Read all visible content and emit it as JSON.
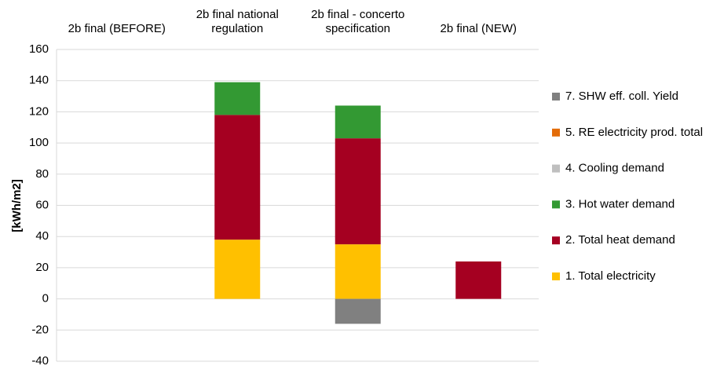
{
  "chart_data": {
    "type": "stacked_bar",
    "categories": [
      "2b final (BEFORE)",
      "2b final national regulation",
      "2b final - concerto specification",
      "2b final (NEW)"
    ],
    "series": [
      {
        "name": "1. Total electricity",
        "color": "#FFC000",
        "values": [
          0,
          38,
          35,
          0
        ]
      },
      {
        "name": "2. Total heat demand",
        "color": "#A50021",
        "values": [
          0,
          80,
          68,
          24
        ]
      },
      {
        "name": "3. Hot water demand",
        "color": "#339933",
        "values": [
          0,
          21,
          21,
          0
        ]
      },
      {
        "name": "4. Cooling demand",
        "color": "#BFBFBF",
        "values": [
          0,
          0,
          0,
          0
        ]
      },
      {
        "name": "5. RE electricity prod. total",
        "color": "#E36C09",
        "values": [
          0,
          0,
          0,
          0
        ]
      },
      {
        "name": "7. SHW eff. coll. Yield",
        "color": "#808080",
        "values": [
          0,
          0,
          -16,
          0
        ]
      }
    ],
    "y_label": "[kWh/m2]",
    "ylim": [
      -40,
      160
    ],
    "yticks": [
      -40,
      -20,
      0,
      20,
      40,
      60,
      80,
      100,
      120,
      140,
      160
    ],
    "grid": true,
    "legend": "right"
  }
}
